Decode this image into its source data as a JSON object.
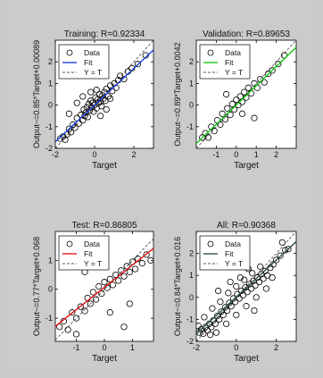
{
  "chart_data": [
    {
      "type": "scatter",
      "title": "Training: R=0.92334",
      "xlabel": "Target",
      "ylabel": "Output~=0.85*Target+0.00089",
      "xlim": [
        -2,
        3
      ],
      "ylim": [
        -2,
        3
      ],
      "xticks": [
        -2,
        0,
        2
      ],
      "yticks": [
        -2,
        -1,
        0,
        1,
        2
      ],
      "fit_color": "#1f3fd8",
      "legend": {
        "placement": "top-left",
        "entries": [
          "Data",
          "Fit",
          "Y = T"
        ]
      },
      "fit": {
        "slope": 0.85,
        "intercept": 0.00089
      },
      "points": [
        [
          -1.75,
          -1.55
        ],
        [
          -1.6,
          -1.45
        ],
        [
          -1.5,
          -1.6
        ],
        [
          -1.4,
          -1.35
        ],
        [
          -1.3,
          -1.1
        ],
        [
          -1.2,
          -1.25
        ],
        [
          -1.1,
          -0.9
        ],
        [
          -1.0,
          -1.05
        ],
        [
          -0.9,
          -0.6
        ],
        [
          -0.8,
          -0.85
        ],
        [
          -0.7,
          -0.45
        ],
        [
          -0.6,
          -0.7
        ],
        [
          -0.55,
          -0.2
        ],
        [
          -0.5,
          -0.5
        ],
        [
          -0.45,
          -0.35
        ],
        [
          -0.4,
          -0.1
        ],
        [
          -0.35,
          -0.55
        ],
        [
          -0.3,
          0.05
        ],
        [
          -0.25,
          -0.25
        ],
        [
          -0.2,
          0.2
        ],
        [
          -0.15,
          -0.1
        ],
        [
          -0.1,
          0.1
        ],
        [
          -0.05,
          -0.3
        ],
        [
          0.0,
          0.0
        ],
        [
          0.05,
          0.35
        ],
        [
          0.1,
          -0.15
        ],
        [
          0.15,
          0.25
        ],
        [
          0.2,
          0.1
        ],
        [
          0.25,
          0.5
        ],
        [
          0.3,
          0.15
        ],
        [
          0.35,
          -0.05
        ],
        [
          0.4,
          0.45
        ],
        [
          0.45,
          0.3
        ],
        [
          0.5,
          0.6
        ],
        [
          0.55,
          0.2
        ],
        [
          0.6,
          0.75
        ],
        [
          0.7,
          0.4
        ],
        [
          0.8,
          0.9
        ],
        [
          0.9,
          0.65
        ],
        [
          1.0,
          1.0
        ],
        [
          1.1,
          0.8
        ],
        [
          1.2,
          1.15
        ],
        [
          1.3,
          1.35
        ],
        [
          1.5,
          1.2
        ],
        [
          1.7,
          1.55
        ],
        [
          1.9,
          1.7
        ],
        [
          2.2,
          1.9
        ],
        [
          2.6,
          2.3
        ],
        [
          -0.6,
          0.4
        ],
        [
          -0.2,
          0.6
        ],
        [
          0.3,
          -0.5
        ],
        [
          0.6,
          -0.2
        ],
        [
          -1.3,
          -0.4
        ],
        [
          -0.9,
          0.1
        ],
        [
          0.1,
          0.7
        ],
        [
          0.8,
          0.3
        ]
      ]
    },
    {
      "type": "scatter",
      "title": "Validation: R=0.89653",
      "xlabel": "Target",
      "ylabel": "Output~=0.89*Target+0.0042",
      "xlim": [
        -2,
        3
      ],
      "ylim": [
        -2,
        3
      ],
      "xticks": [
        -1,
        0,
        1,
        2
      ],
      "yticks": [
        -1,
        0,
        1,
        2
      ],
      "fit_color": "#15c915",
      "legend": {
        "placement": "top-left",
        "entries": [
          "Data",
          "Fit",
          "Y = T"
        ]
      },
      "fit": {
        "slope": 0.89,
        "intercept": 0.0042
      },
      "points": [
        [
          -1.7,
          -1.5
        ],
        [
          -1.55,
          -1.3
        ],
        [
          -1.4,
          -1.5
        ],
        [
          -1.25,
          -1.0
        ],
        [
          -1.1,
          -1.2
        ],
        [
          -0.95,
          -0.7
        ],
        [
          -0.8,
          -0.9
        ],
        [
          -0.7,
          -0.4
        ],
        [
          -0.55,
          -0.65
        ],
        [
          -0.45,
          -0.15
        ],
        [
          -0.3,
          -0.45
        ],
        [
          -0.2,
          0.05
        ],
        [
          -0.1,
          -0.2
        ],
        [
          0.0,
          0.25
        ],
        [
          0.1,
          0.0
        ],
        [
          0.2,
          0.4
        ],
        [
          0.3,
          0.15
        ],
        [
          0.4,
          0.6
        ],
        [
          0.5,
          0.35
        ],
        [
          0.6,
          0.8
        ],
        [
          0.75,
          0.55
        ],
        [
          0.9,
          1.0
        ],
        [
          1.05,
          0.8
        ],
        [
          1.2,
          1.2
        ],
        [
          1.4,
          1.05
        ],
        [
          1.6,
          1.45
        ],
        [
          1.8,
          1.6
        ],
        [
          2.1,
          1.9
        ],
        [
          2.4,
          2.3
        ],
        [
          0.9,
          -0.6
        ],
        [
          -0.5,
          0.5
        ],
        [
          0.3,
          -0.4
        ]
      ]
    },
    {
      "type": "scatter",
      "title": "Test: R=0.86805",
      "xlabel": "Target",
      "ylabel": "Output~=0.77*Target+0.068",
      "xlim": [
        -1.75,
        1.75
      ],
      "ylim": [
        -1.8,
        2.0
      ],
      "xticks": [
        -1,
        0,
        1
      ],
      "yticks": [
        -1,
        0,
        1
      ],
      "fit_color": "#e01818",
      "legend": {
        "placement": "top-left",
        "entries": [
          "Data",
          "Fit",
          "Y = T"
        ]
      },
      "fit": {
        "slope": 0.77,
        "intercept": 0.068
      },
      "points": [
        [
          -1.6,
          -1.3
        ],
        [
          -1.45,
          -1.1
        ],
        [
          -1.3,
          -1.4
        ],
        [
          -1.15,
          -0.8
        ],
        [
          -1.0,
          -1.0
        ],
        [
          -0.85,
          -0.6
        ],
        [
          -0.7,
          -0.75
        ],
        [
          -0.6,
          -0.3
        ],
        [
          -0.5,
          -0.5
        ],
        [
          -0.4,
          -0.1
        ],
        [
          -0.3,
          -0.35
        ],
        [
          -0.2,
          0.1
        ],
        [
          -0.1,
          -0.15
        ],
        [
          0.0,
          0.25
        ],
        [
          0.1,
          0.05
        ],
        [
          0.2,
          0.35
        ],
        [
          0.3,
          0.15
        ],
        [
          0.4,
          0.5
        ],
        [
          0.5,
          0.3
        ],
        [
          0.6,
          0.65
        ],
        [
          0.7,
          0.45
        ],
        [
          0.8,
          0.8
        ],
        [
          0.9,
          0.6
        ],
        [
          1.0,
          0.95
        ],
        [
          1.1,
          0.7
        ],
        [
          1.2,
          1.05
        ],
        [
          1.35,
          0.9
        ],
        [
          1.5,
          1.2
        ],
        [
          1.65,
          1.0
        ],
        [
          0.7,
          -1.3
        ],
        [
          -0.7,
          0.6
        ],
        [
          -1.0,
          -1.55
        ],
        [
          0.9,
          -0.5
        ],
        [
          0.2,
          -0.8
        ]
      ]
    },
    {
      "type": "scatter",
      "title": "All: R=0.90368",
      "xlabel": "Target",
      "ylabel": "Output~=0.84*Target+0.016",
      "xlim": [
        -2,
        3
      ],
      "ylim": [
        -2,
        3
      ],
      "xticks": [
        -2,
        0,
        2
      ],
      "yticks": [
        -2,
        -1,
        0,
        1,
        2
      ],
      "fit_color": "#2f4f4f",
      "legend": {
        "placement": "top-left",
        "entries": [
          "Data",
          "Fit",
          "Y = T"
        ]
      },
      "fit": {
        "slope": 0.84,
        "intercept": 0.016
      },
      "points": [
        [
          -1.85,
          -1.6
        ],
        [
          -1.75,
          -1.45
        ],
        [
          -1.65,
          -1.65
        ],
        [
          -1.55,
          -1.35
        ],
        [
          -1.45,
          -1.5
        ],
        [
          -1.35,
          -1.2
        ],
        [
          -1.25,
          -1.35
        ],
        [
          -1.15,
          -1.05
        ],
        [
          -1.05,
          -1.2
        ],
        [
          -0.95,
          -0.85
        ],
        [
          -0.85,
          -1.0
        ],
        [
          -0.75,
          -0.65
        ],
        [
          -0.65,
          -0.8
        ],
        [
          -0.55,
          -0.45
        ],
        [
          -0.45,
          -0.6
        ],
        [
          -0.35,
          -0.25
        ],
        [
          -0.25,
          -0.4
        ],
        [
          -0.15,
          -0.05
        ],
        [
          -0.05,
          -0.2
        ],
        [
          0.05,
          0.15
        ],
        [
          0.15,
          -0.05
        ],
        [
          0.25,
          0.3
        ],
        [
          0.35,
          0.1
        ],
        [
          0.45,
          0.45
        ],
        [
          0.55,
          0.25
        ],
        [
          0.65,
          0.6
        ],
        [
          0.75,
          0.4
        ],
        [
          0.85,
          0.75
        ],
        [
          0.95,
          0.55
        ],
        [
          1.05,
          0.9
        ],
        [
          1.15,
          0.7
        ],
        [
          1.25,
          1.05
        ],
        [
          1.35,
          0.85
        ],
        [
          1.45,
          1.2
        ],
        [
          1.55,
          1.0
        ],
        [
          1.7,
          1.35
        ],
        [
          1.85,
          1.5
        ],
        [
          2.0,
          1.7
        ],
        [
          2.2,
          1.9
        ],
        [
          2.45,
          2.15
        ],
        [
          -1.6,
          -0.9
        ],
        [
          -1.2,
          -0.5
        ],
        [
          -0.8,
          -0.2
        ],
        [
          -0.4,
          0.2
        ],
        [
          0.0,
          0.5
        ],
        [
          0.4,
          0.8
        ],
        [
          0.8,
          1.1
        ],
        [
          1.2,
          1.4
        ],
        [
          -1.0,
          -1.6
        ],
        [
          -0.5,
          -1.2
        ],
        [
          0.0,
          -0.8
        ],
        [
          0.5,
          -0.4
        ],
        [
          1.0,
          0.0
        ],
        [
          1.5,
          0.4
        ],
        [
          0.2,
          0.9
        ],
        [
          -0.9,
          0.3
        ],
        [
          0.9,
          -0.6
        ],
        [
          -0.3,
          0.7
        ],
        [
          0.6,
          1.3
        ],
        [
          1.8,
          0.9
        ],
        [
          2.3,
          2.5
        ],
        [
          2.6,
          2.2
        ],
        [
          -1.9,
          -1.3
        ],
        [
          -1.3,
          -1.7
        ]
      ]
    }
  ]
}
